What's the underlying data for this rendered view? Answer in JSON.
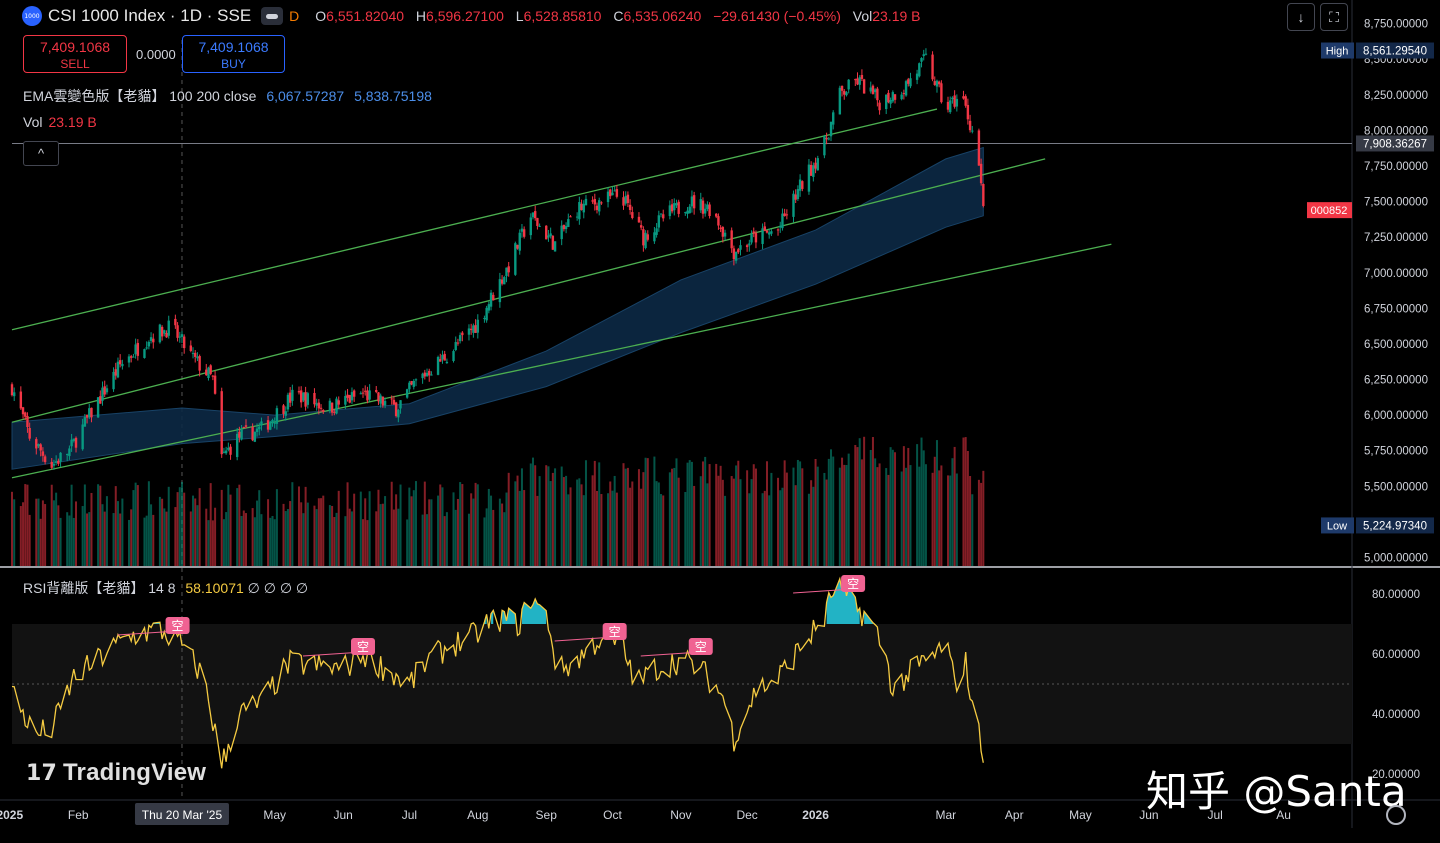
{
  "header": {
    "logo_text": "1000",
    "title": "CSI 1000 Index · 1D · SSE",
    "flag": "D",
    "ohlc": {
      "o_label": "O",
      "o": "6,551.82040",
      "h_label": "H",
      "h": "6,596.27100",
      "l_label": "L",
      "l": "6,528.85810",
      "c_label": "C",
      "c": "6,535.06240",
      "change": "−29.61430 (−0.45%)",
      "vol_label": "Vol",
      "vol": "23.19 B"
    }
  },
  "trade": {
    "sell_price": "7,409.1068",
    "sell_label": "SELL",
    "spread": "0.0000",
    "buy_price": "7,409.1068",
    "buy_label": "BUY"
  },
  "indicators": {
    "ema_name": "EMA雲變色版【老貓】",
    "ema_params": "100 200 close",
    "ema_v1": "6,067.57287",
    "ema_v2": "5,838.75198",
    "vol_label": "Vol",
    "vol_value": "23.19 B",
    "collapse_icon": "^",
    "rsi_name": "RSI背離版【老貓】",
    "rsi_params": "14 8",
    "rsi_value": "58.10071",
    "rsi_extra": "∅ ∅ ∅ ∅"
  },
  "toolbar": {
    "download_icon": "↓",
    "fullscreen_icon": "⛶"
  },
  "watermark": {
    "brand": "TradingView",
    "credit": "知乎 @Santa"
  },
  "colors": {
    "up": "#089981",
    "down": "#f23645",
    "channel": "#4caf50",
    "cloud": "#0d2a45",
    "rsi": "#f5cb42",
    "rsi_fill": "#26c6da",
    "badge": "#f06292"
  },
  "chart_data": [
    {
      "type": "candlestick",
      "x_range": [
        "2025-01-02",
        "2026-09-01"
      ],
      "price_axis": {
        "ticks": [
          5000,
          5250,
          5500,
          5750,
          6000,
          6250,
          6500,
          6750,
          7000,
          7250,
          7500,
          7750,
          8000,
          8250,
          8500,
          8750
        ],
        "tick_labels": [
          "5,000.00000",
          "5,250.00000",
          "5,500.00000",
          "5,750.00000",
          "6,000.00000",
          "6,250.00000",
          "6,500.00000",
          "6,750.00000",
          "7,000.00000",
          "7,250.00000",
          "7,500.00000",
          "7,750.00000",
          "8,000.00000",
          "8,250.00000",
          "8,500.00000",
          "8,750.00000"
        ],
        "range": [
          4940,
          8860
        ]
      },
      "markers": {
        "high_label": "High",
        "high": "8,561.29540",
        "high_value": 8561.3,
        "low_label": "Low",
        "low": "5,224.97340",
        "low_value": 5225.0,
        "hline_label": "7,908.36267",
        "hline_value": 7908.36,
        "countdown_label": "000852",
        "countdown_value": 7440
      },
      "close_path": [
        [
          "2025-01-02",
          6200
        ],
        [
          "2025-01-10",
          5850
        ],
        [
          "2025-01-20",
          5650
        ],
        [
          "2025-01-28",
          5750
        ],
        [
          "2025-02-10",
          6100
        ],
        [
          "2025-02-20",
          6350
        ],
        [
          "2025-03-05",
          6550
        ],
        [
          "2025-03-15",
          6620
        ],
        [
          "2025-03-25",
          6400
        ],
        [
          "2025-04-03",
          6250
        ],
        [
          "2025-04-07",
          5700
        ],
        [
          "2025-04-15",
          5850
        ],
        [
          "2025-04-25",
          5900
        ],
        [
          "2025-05-10",
          6150
        ],
        [
          "2025-05-25",
          6050
        ],
        [
          "2025-06-10",
          6150
        ],
        [
          "2025-06-25",
          6050
        ],
        [
          "2025-07-05",
          6250
        ],
        [
          "2025-07-20",
          6450
        ],
        [
          "2025-08-01",
          6650
        ],
        [
          "2025-08-15",
          7050
        ],
        [
          "2025-08-25",
          7400
        ],
        [
          "2025-09-05",
          7200
        ],
        [
          "2025-09-15",
          7450
        ],
        [
          "2025-09-25",
          7500
        ],
        [
          "2025-10-05",
          7550
        ],
        [
          "2025-10-15",
          7250
        ],
        [
          "2025-10-25",
          7400
        ],
        [
          "2025-11-05",
          7500
        ],
        [
          "2025-11-15",
          7450
        ],
        [
          "2025-11-25",
          7150
        ],
        [
          "2025-12-05",
          7250
        ],
        [
          "2025-12-15",
          7300
        ],
        [
          "2025-12-25",
          7600
        ],
        [
          "2026-01-05",
          7900
        ],
        [
          "2026-01-12",
          8250
        ],
        [
          "2026-01-20",
          8350
        ],
        [
          "2026-01-30",
          8200
        ],
        [
          "2026-02-10",
          8300
        ],
        [
          "2026-02-20",
          8500
        ],
        [
          "2026-03-01",
          8150
        ],
        [
          "2026-03-08",
          8250
        ],
        [
          "2026-03-13",
          8000
        ],
        [
          "2026-03-16",
          7750
        ],
        [
          "2026-03-18",
          7430
        ]
      ],
      "ema_cloud": {
        "upper": [
          [
            "2025-01-02",
            5950
          ],
          [
            "2025-03-20",
            6050
          ],
          [
            "2025-05-01",
            6000
          ],
          [
            "2025-07-01",
            6080
          ],
          [
            "2025-09-01",
            6450
          ],
          [
            "2025-11-01",
            6950
          ],
          [
            "2026-01-01",
            7300
          ],
          [
            "2026-03-01",
            7800
          ],
          [
            "2026-03-18",
            7880
          ]
        ],
        "lower": [
          [
            "2025-01-02",
            5620
          ],
          [
            "2025-03-20",
            5800
          ],
          [
            "2025-05-01",
            5850
          ],
          [
            "2025-07-01",
            5940
          ],
          [
            "2025-09-01",
            6200
          ],
          [
            "2025-11-01",
            6580
          ],
          [
            "2026-01-01",
            6920
          ],
          [
            "2026-03-01",
            7320
          ],
          [
            "2026-03-18",
            7400
          ]
        ]
      },
      "channel_lines": [
        {
          "from": [
            "2025-01-02",
            6600
          ],
          "to": [
            "2026-02-25",
            8150
          ]
        },
        {
          "from": [
            "2025-01-02",
            5950
          ],
          "to": [
            "2026-04-15",
            7800
          ]
        },
        {
          "from": [
            "2025-01-02",
            5560
          ],
          "to": [
            "2026-05-15",
            7200
          ]
        }
      ],
      "volume": {
        "baseline": 4940,
        "color_up": "#089981",
        "color_down": "#f23645"
      }
    },
    {
      "type": "line",
      "name": "RSI",
      "y_axis": {
        "ticks": [
          20,
          40,
          60,
          80
        ],
        "tick_labels": [
          "20.00000",
          "40.00000",
          "60.00000",
          "80.00000"
        ],
        "range": [
          12,
          88
        ]
      },
      "bands": [
        30,
        50,
        70
      ],
      "rsi_path": [
        [
          "2025-01-02",
          48
        ],
        [
          "2025-01-12",
          33
        ],
        [
          "2025-01-20",
          35
        ],
        [
          "2025-01-30",
          52
        ],
        [
          "2025-02-10",
          58
        ],
        [
          "2025-02-20",
          64
        ],
        [
          "2025-03-01",
          67
        ],
        [
          "2025-03-10",
          68
        ],
        [
          "2025-03-20",
          63
        ],
        [
          "2025-03-30",
          52
        ],
        [
          "2025-04-07",
          23
        ],
        [
          "2025-04-15",
          40
        ],
        [
          "2025-04-25",
          44
        ],
        [
          "2025-05-08",
          57
        ],
        [
          "2025-05-20",
          56
        ],
        [
          "2025-06-01",
          55
        ],
        [
          "2025-06-10",
          60
        ],
        [
          "2025-06-20",
          55
        ],
        [
          "2025-07-01",
          50
        ],
        [
          "2025-07-10",
          58
        ],
        [
          "2025-07-20",
          63
        ],
        [
          "2025-07-30",
          66
        ],
        [
          "2025-08-05",
          70
        ],
        [
          "2025-08-12",
          72
        ],
        [
          "2025-08-20",
          70
        ],
        [
          "2025-08-25",
          79
        ],
        [
          "2025-09-02",
          71
        ],
        [
          "2025-09-06",
          54
        ],
        [
          "2025-09-15",
          58
        ],
        [
          "2025-09-25",
          65
        ],
        [
          "2025-10-05",
          63
        ],
        [
          "2025-10-12",
          50
        ],
        [
          "2025-10-20",
          55
        ],
        [
          "2025-11-01",
          58
        ],
        [
          "2025-11-10",
          55
        ],
        [
          "2025-11-20",
          46
        ],
        [
          "2025-11-25",
          32
        ],
        [
          "2025-12-05",
          48
        ],
        [
          "2025-12-15",
          52
        ],
        [
          "2025-12-25",
          62
        ],
        [
          "2026-01-05",
          72
        ],
        [
          "2026-01-10",
          84
        ],
        [
          "2026-01-18",
          76
        ],
        [
          "2026-01-25",
          72
        ],
        [
          "2026-02-01",
          62
        ],
        [
          "2026-02-05",
          48
        ],
        [
          "2026-02-15",
          55
        ],
        [
          "2026-02-25",
          60
        ],
        [
          "2026-03-01",
          65
        ],
        [
          "2026-03-05",
          50
        ],
        [
          "2026-03-10",
          57
        ],
        [
          "2026-03-14",
          38
        ],
        [
          "2026-03-18",
          28
        ]
      ],
      "divergence_markers": [
        {
          "label": "空",
          "date": "2025-03-18",
          "value": 68
        },
        {
          "label": "空",
          "date": "2025-06-10",
          "value": 61
        },
        {
          "label": "空",
          "date": "2025-10-02",
          "value": 66
        },
        {
          "label": "空",
          "date": "2025-11-10",
          "value": 61
        },
        {
          "label": "空",
          "date": "2026-01-18",
          "value": 82
        }
      ]
    }
  ],
  "x_axis": {
    "ticks": [
      [
        "2025-01-01",
        "2025"
      ],
      [
        "2025-02-01",
        "Feb"
      ],
      [
        "2025-03-01",
        "M"
      ],
      [
        "2025-05-01",
        "May"
      ],
      [
        "2025-06-01",
        "Jun"
      ],
      [
        "2025-07-01",
        "Jul"
      ],
      [
        "2025-08-01",
        "Aug"
      ],
      [
        "2025-09-01",
        "Sep"
      ],
      [
        "2025-10-01",
        "Oct"
      ],
      [
        "2025-11-01",
        "Nov"
      ],
      [
        "2025-12-01",
        "Dec"
      ],
      [
        "2026-01-01",
        "2026"
      ],
      [
        "2026-03-01",
        "Mar"
      ],
      [
        "2026-04-01",
        "Apr"
      ],
      [
        "2026-05-01",
        "May"
      ],
      [
        "2026-06-01",
        "Jun"
      ],
      [
        "2026-07-01",
        "Jul"
      ],
      [
        "2026-08-01",
        "Au"
      ]
    ],
    "cursor_date": "2025-03-20",
    "cursor_label": "Thu 20 Mar '25"
  }
}
